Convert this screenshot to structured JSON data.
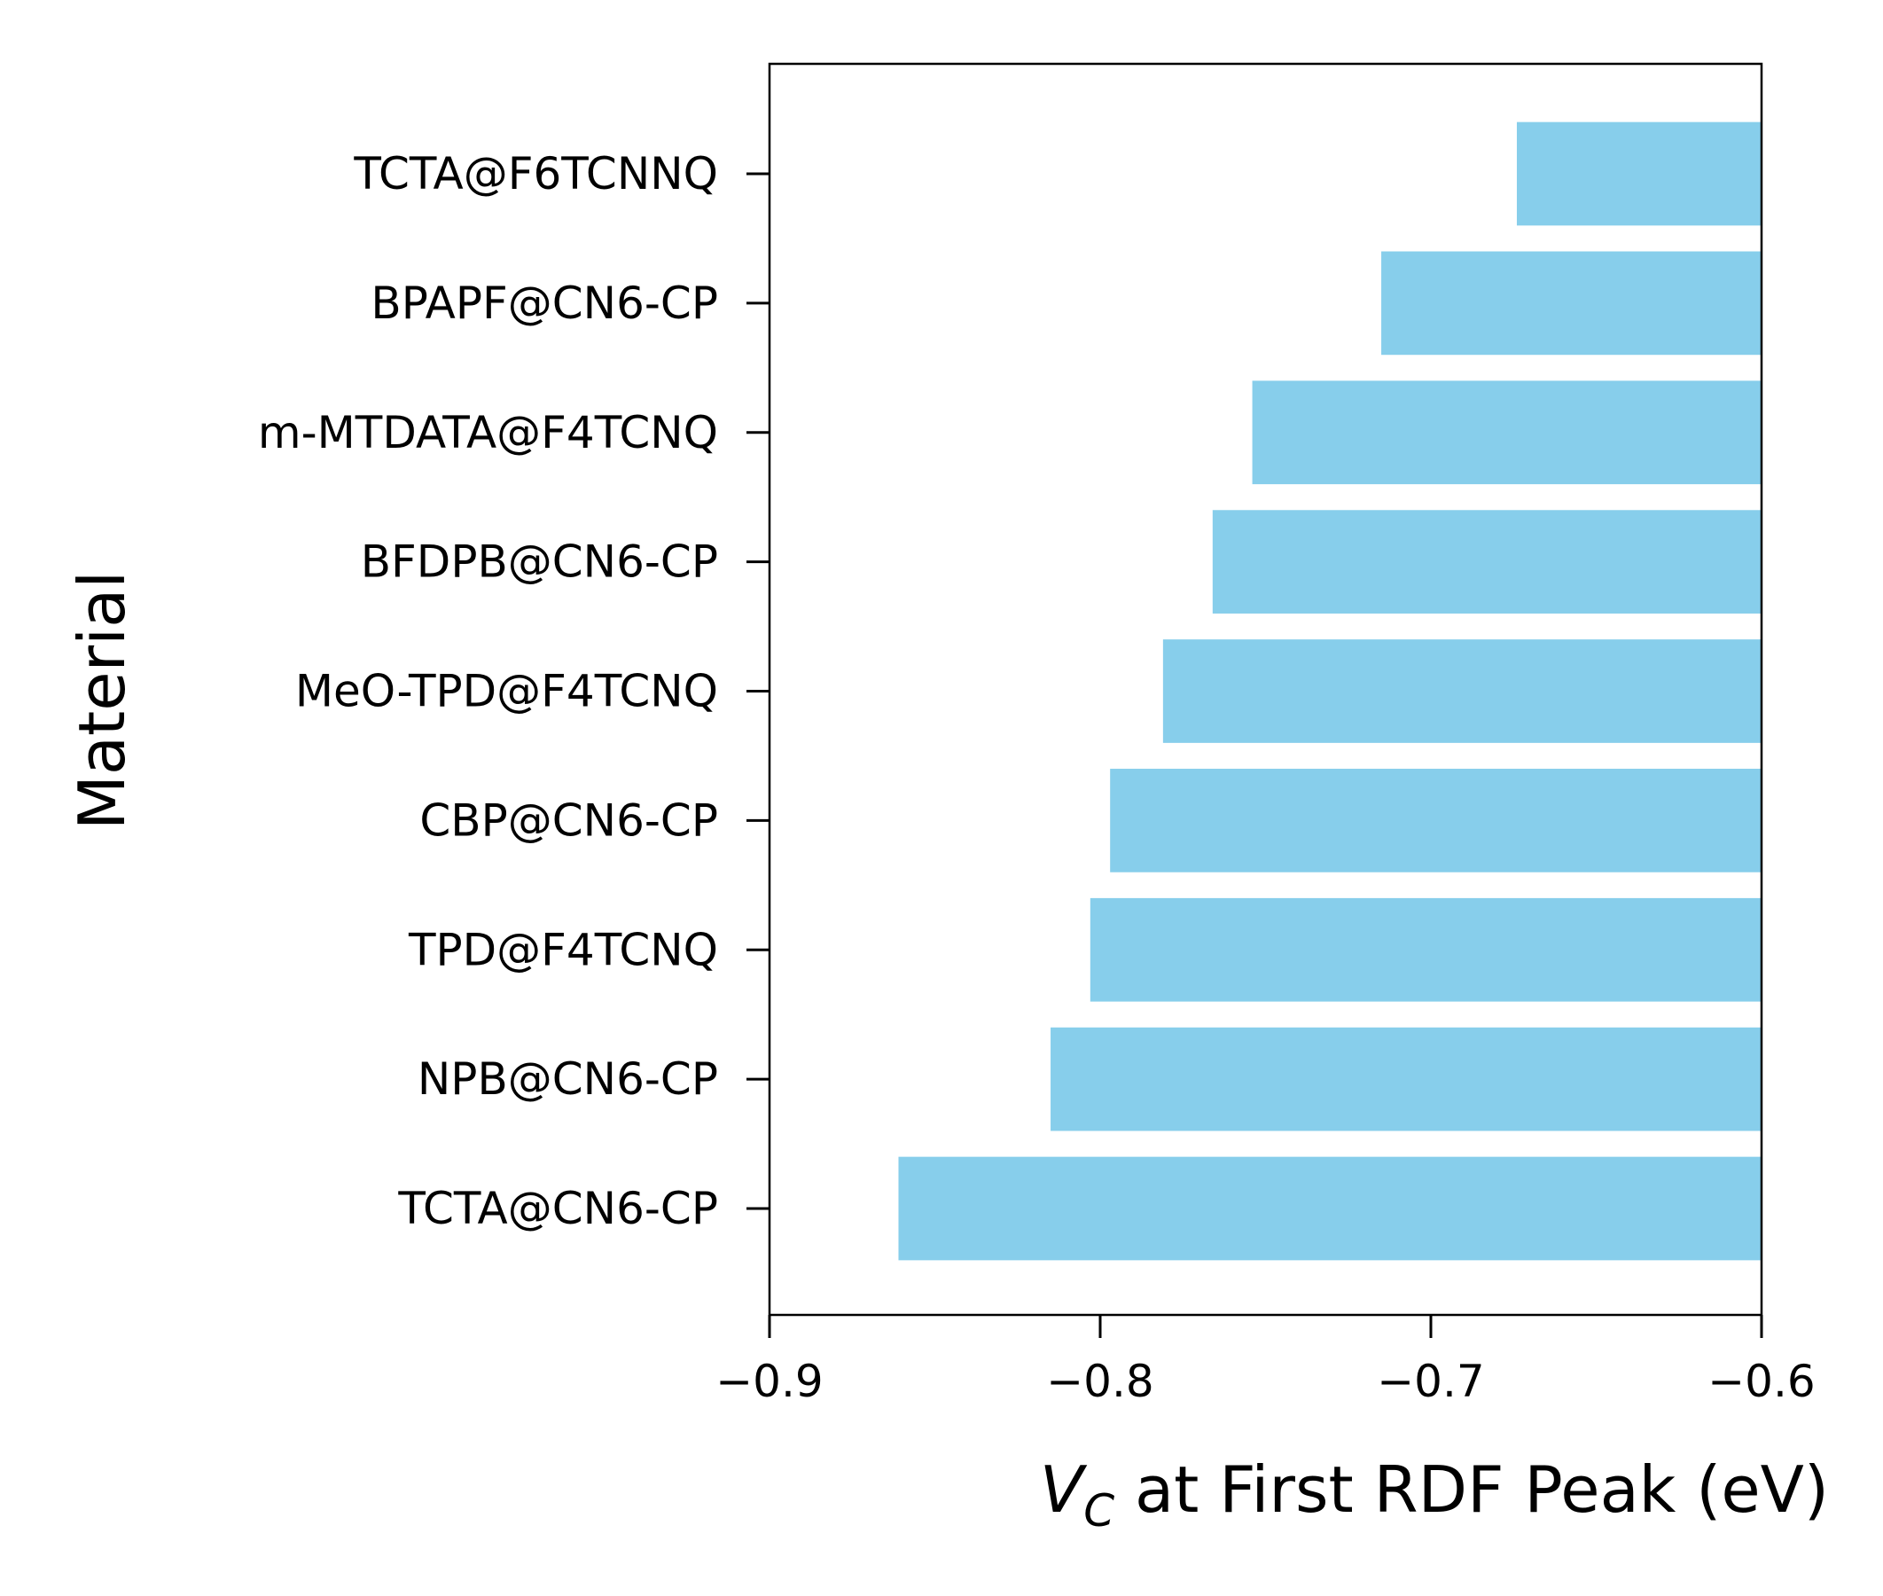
{
  "chart_data": {
    "type": "bar",
    "orientation": "horizontal",
    "categories": [
      "TCTA@F6TCNNQ",
      "BPAPF@CN6-CP",
      "m-MTDATA@F4TCNQ",
      "BFDPB@CN6-CP",
      "MeO-TPD@F4TCNQ",
      "CBP@CN6-CP",
      "TPD@F4TCNQ",
      "NPB@CN6-CP",
      "TCTA@CN6-CP"
    ],
    "values": [
      -0.674,
      -0.715,
      -0.754,
      -0.766,
      -0.781,
      -0.797,
      -0.803,
      -0.815,
      -0.861
    ],
    "xlabel_var": "V",
    "xlabel_sub": "C",
    "xlabel_rest": " at First RDF Peak (eV)",
    "ylabel": "Material",
    "xlim": [
      -0.9,
      -0.6
    ],
    "xticks": [
      "−0.9",
      "−0.8",
      "−0.7",
      "−0.6"
    ],
    "xtick_values": [
      -0.9,
      -0.8,
      -0.7,
      -0.6
    ],
    "bar_color": "#87ceeb",
    "grid": false,
    "legend": "none"
  }
}
